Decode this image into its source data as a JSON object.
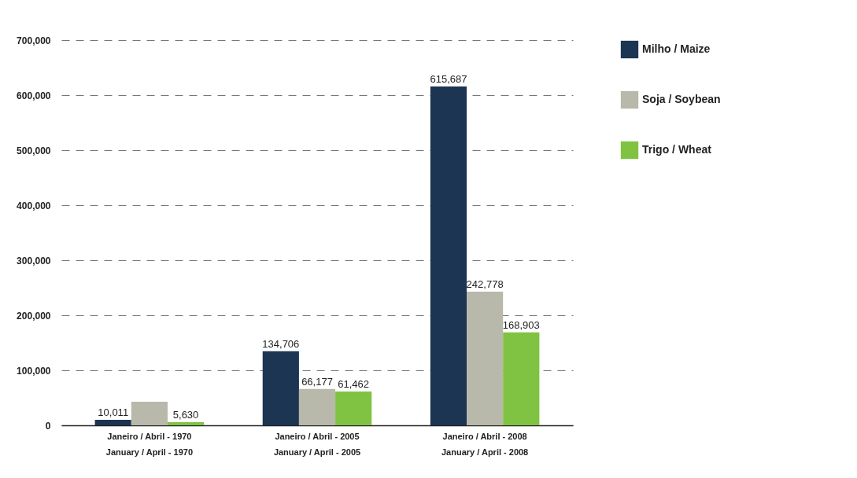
{
  "chart_data": {
    "type": "bar",
    "categories": [
      "Janeiro / Abril - 1970\nJanuary / April - 1970",
      "Janeiro / Abril - 2005\nJanuary / April - 2005",
      "Janeiro / Abril - 2008\nJanuary / April - 2008"
    ],
    "series": [
      {
        "name": "Milho / Maize",
        "color": "#1b3552",
        "values": [
          10011,
          134706,
          615687
        ],
        "value_labels": [
          "10,011",
          "134,706",
          "615,687"
        ]
      },
      {
        "name": "Soja / Soybean",
        "color": "#b8b8ab",
        "values": [
          43000,
          66177,
          242778
        ],
        "value_labels": [
          null,
          "66,177",
          "242,778"
        ]
      },
      {
        "name": "Trigo / Wheat",
        "color": "#80c241",
        "values": [
          5630,
          61462,
          168903
        ],
        "value_labels": [
          "5,630",
          "61,462",
          "168,903"
        ]
      }
    ],
    "ylim": [
      0,
      700000
    ],
    "yticks": [
      {
        "value": 0,
        "label": "0"
      },
      {
        "value": 100000,
        "label": "100,000"
      },
      {
        "value": 200000,
        "label": "200,000"
      },
      {
        "value": 300000,
        "label": "300,000"
      },
      {
        "value": 400000,
        "label": "400,000"
      },
      {
        "value": 500000,
        "label": "500,000"
      },
      {
        "value": 600000,
        "label": "600,000"
      },
      {
        "value": 700000,
        "label": "700,000"
      }
    ],
    "grid": "y",
    "legend": "right"
  }
}
